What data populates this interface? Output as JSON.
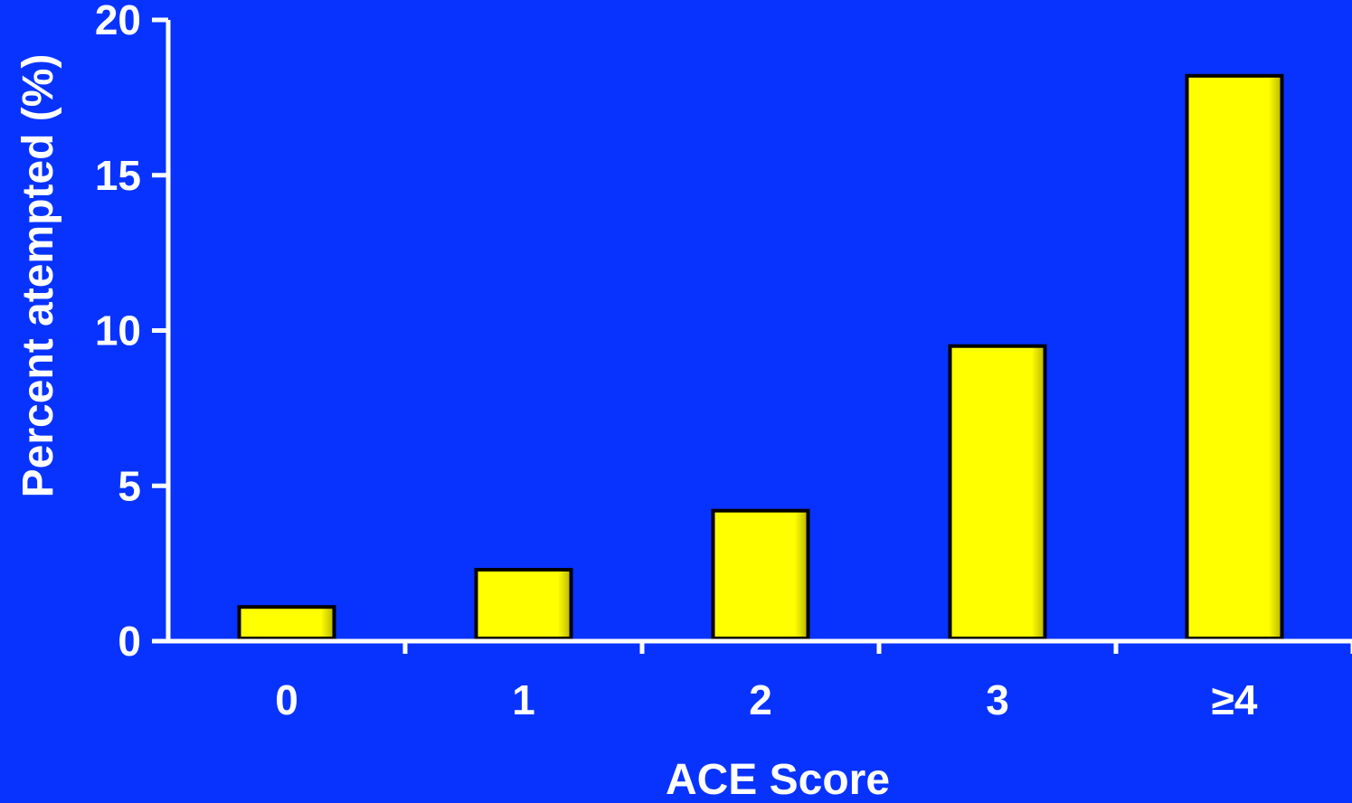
{
  "chart_data": {
    "type": "bar",
    "categories": [
      "0",
      "1",
      "2",
      "3",
      "≥4"
    ],
    "values": [
      1.1,
      2.3,
      4.2,
      9.5,
      18.2
    ],
    "title": "",
    "xlabel": "ACE Score",
    "ylabel": "Percent atempted (%)",
    "ylim": [
      0,
      20
    ],
    "yticks": [
      "0",
      "5",
      "10",
      "15",
      "20"
    ],
    "grid": false,
    "legend": "none"
  },
  "colors": {
    "background": "#0833FF",
    "bar_fill": "#FFFF00",
    "bar_edge": "#000000",
    "axis": "#FFFFFF",
    "text": "#FFFFFF"
  }
}
